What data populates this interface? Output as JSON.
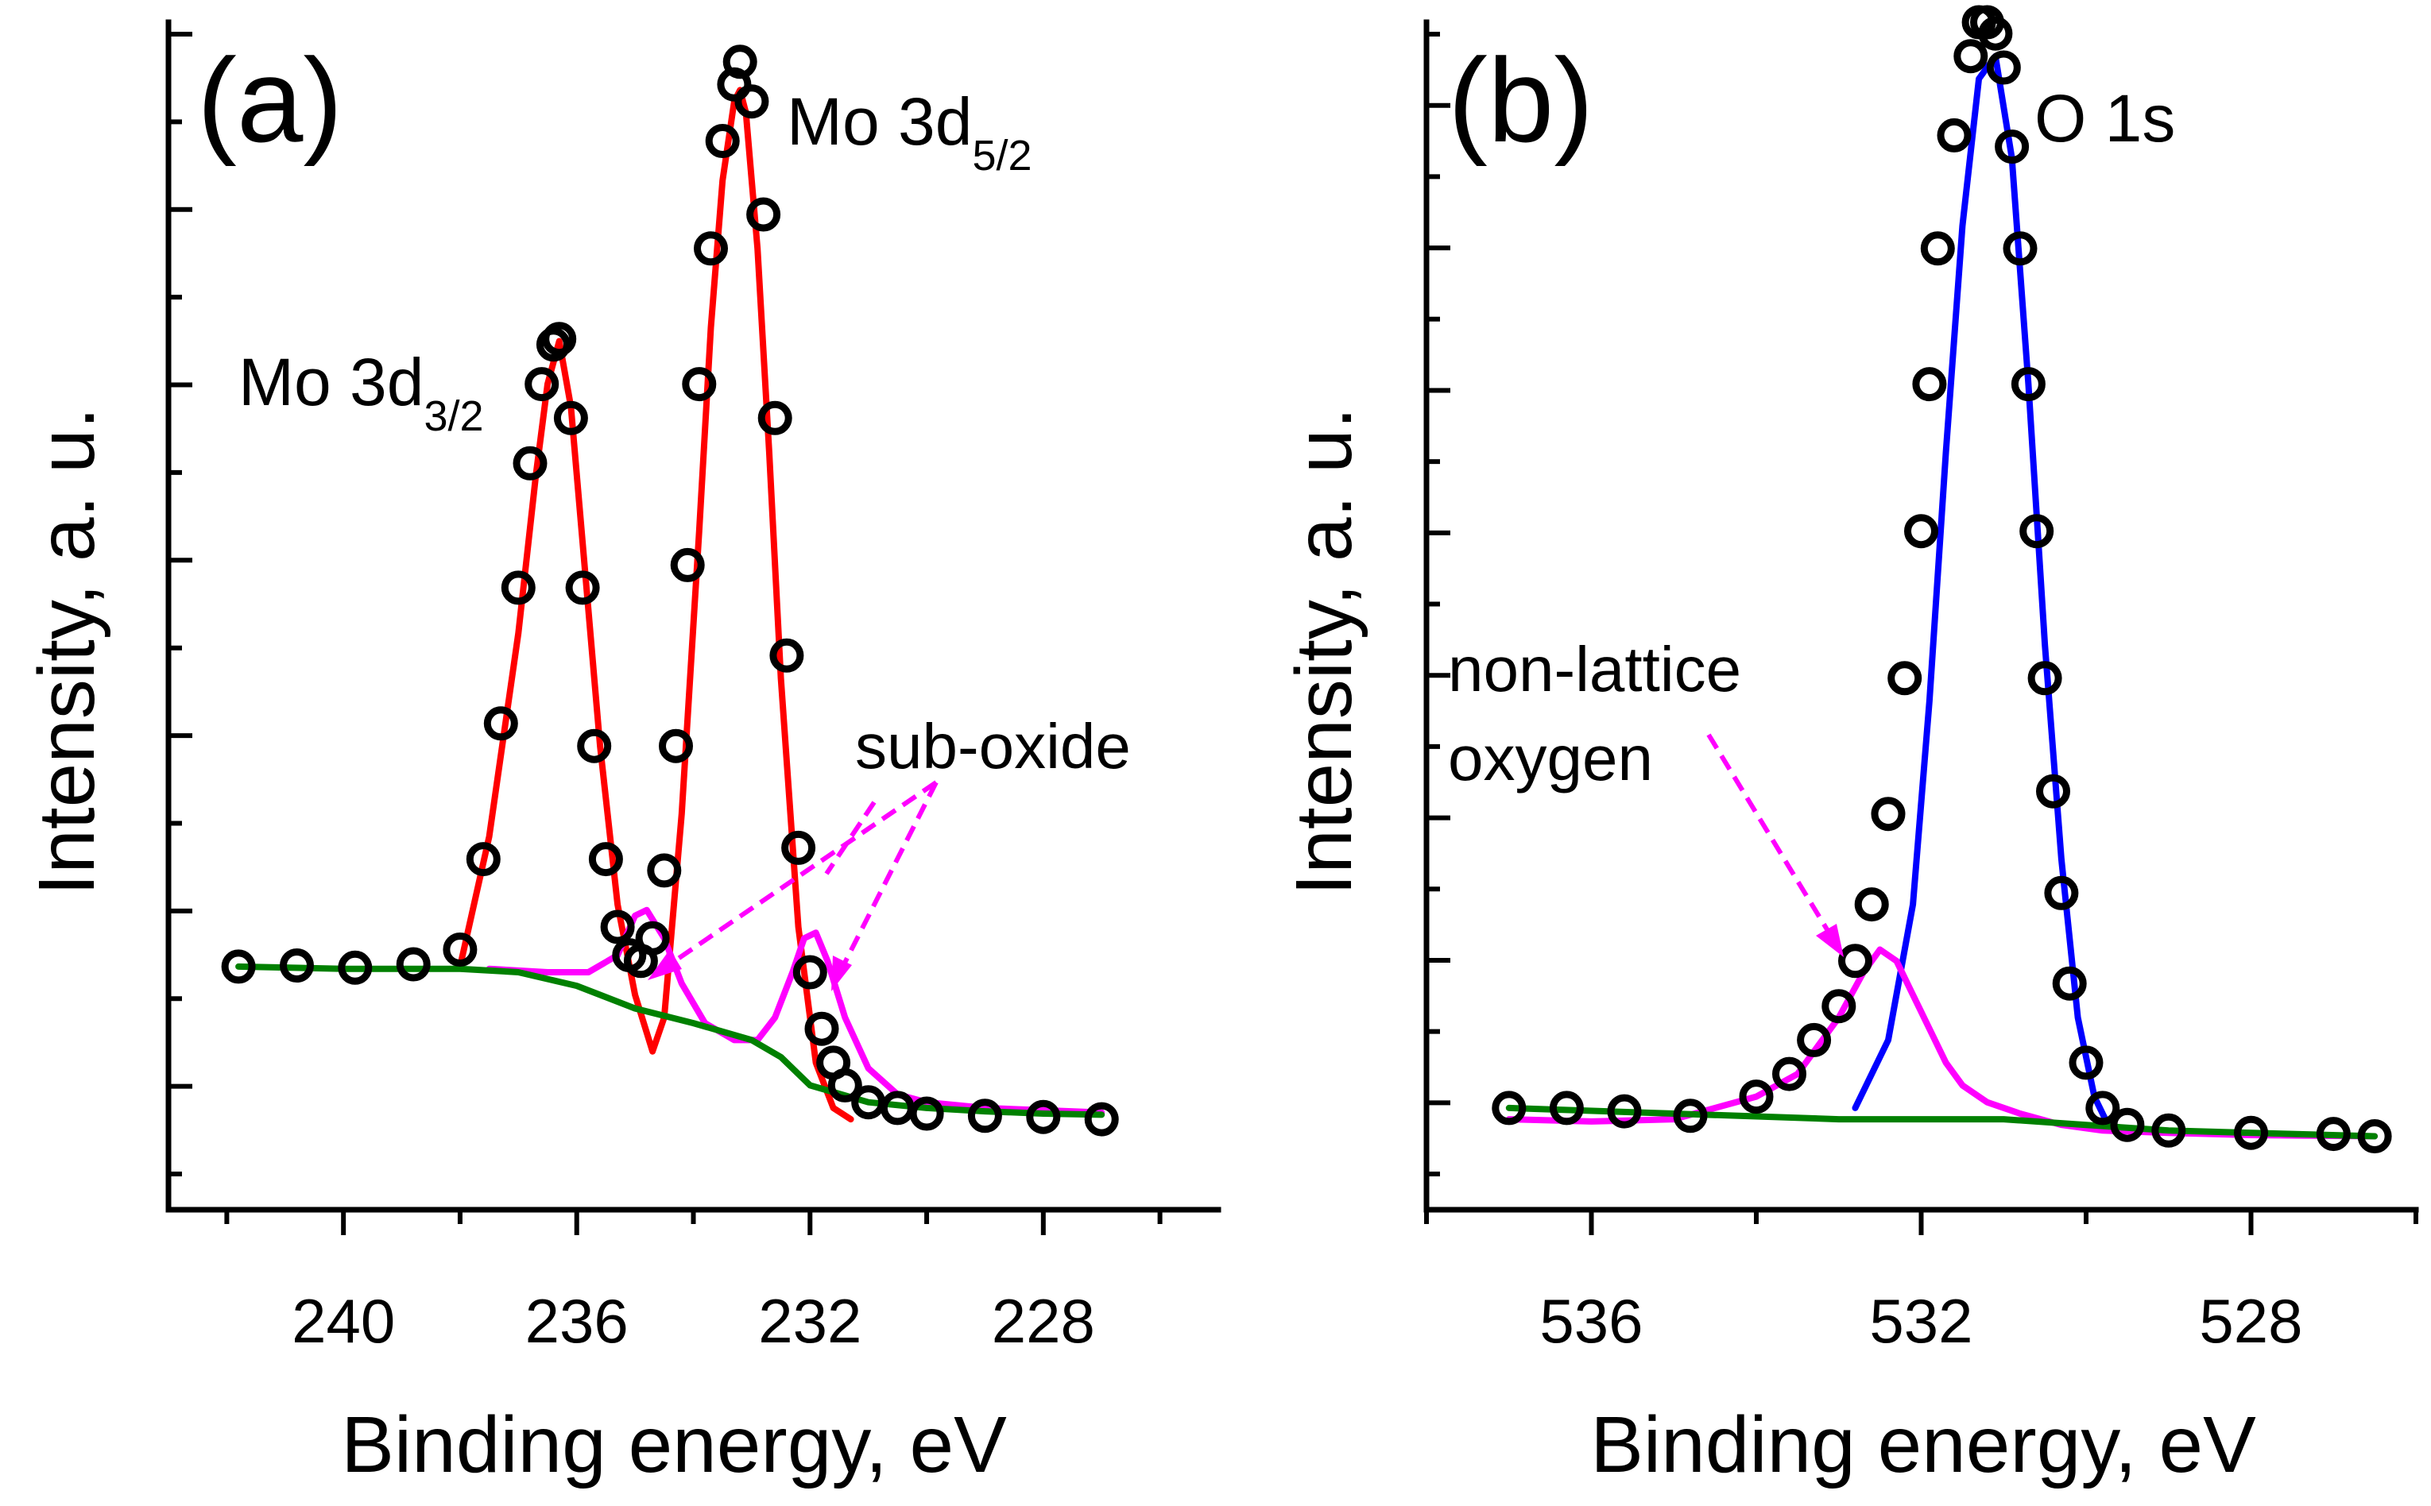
{
  "chart_data": [
    {
      "type": "scatter",
      "panel_label": "(a)",
      "title": "",
      "xlabel": "Binding energy, eV",
      "ylabel": "Intensity, a. u.",
      "xlim": [
        243,
        225
      ],
      "ylim": [
        -0.05,
        1.0
      ],
      "x_reversed": true,
      "y_tick_labels_shown": false,
      "xticks": [
        240,
        236,
        232,
        228
      ],
      "xtick_labels": [
        "240",
        "236",
        "232",
        "228"
      ],
      "peak_labels": [
        {
          "main": "Mo 3d",
          "sub": "3/2",
          "x": 236.3
        },
        {
          "main": "Mo 3d",
          "sub": "5/2",
          "x": 233.2
        }
      ],
      "annotation": {
        "text": "sub-oxide",
        "arrows_to_x": [
          234.7,
          231.8
        ]
      },
      "series": [
        {
          "name": "Measured data",
          "style": "open-circles",
          "color": "#000000",
          "x": [
            241.8,
            240.8,
            239.8,
            238.8,
            238.0,
            237.6,
            237.3,
            237.0,
            236.8,
            236.6,
            236.4,
            236.3,
            236.1,
            235.9,
            235.7,
            235.5,
            235.3,
            235.1,
            234.9,
            234.7,
            234.5,
            234.3,
            234.1,
            233.9,
            233.7,
            233.5,
            233.3,
            233.2,
            233.0,
            232.8,
            232.6,
            232.4,
            232.2,
            232.0,
            231.8,
            231.6,
            231.4,
            231.0,
            230.5,
            230.0,
            229.0,
            228.0,
            227.0
          ],
          "y": [
            0.165,
            0.166,
            0.164,
            0.167,
            0.18,
            0.26,
            0.38,
            0.5,
            0.61,
            0.68,
            0.715,
            0.72,
            0.65,
            0.5,
            0.36,
            0.26,
            0.2,
            0.175,
            0.17,
            0.19,
            0.25,
            0.36,
            0.52,
            0.68,
            0.8,
            0.895,
            0.945,
            0.965,
            0.93,
            0.83,
            0.65,
            0.44,
            0.27,
            0.16,
            0.11,
            0.08,
            0.06,
            0.045,
            0.04,
            0.035,
            0.033,
            0.032,
            0.03
          ]
        },
        {
          "name": "Mo 3d fit",
          "style": "line",
          "color": "#ff0000",
          "x": [
            238.0,
            237.5,
            237.0,
            236.7,
            236.5,
            236.3,
            236.1,
            235.9,
            235.6,
            235.3,
            235.0,
            234.7,
            234.5,
            234.2,
            233.9,
            233.7,
            233.5,
            233.3,
            233.2,
            233.1,
            232.9,
            232.7,
            232.5,
            232.2,
            231.9,
            231.6,
            231.3
          ],
          "y": [
            0.165,
            0.28,
            0.46,
            0.6,
            0.68,
            0.718,
            0.66,
            0.54,
            0.36,
            0.22,
            0.14,
            0.09,
            0.12,
            0.3,
            0.55,
            0.73,
            0.86,
            0.93,
            0.94,
            0.92,
            0.8,
            0.62,
            0.42,
            0.2,
            0.08,
            0.04,
            0.03
          ]
        },
        {
          "name": "Sub-oxide component",
          "style": "line",
          "color": "#ff00ff",
          "x": [
            237.5,
            236.5,
            235.8,
            235.3,
            235.0,
            234.8,
            234.5,
            234.2,
            233.8,
            233.3,
            232.9,
            232.6,
            232.3,
            232.1,
            231.9,
            231.7,
            231.4,
            231.0,
            230.5,
            230.0,
            229.0,
            228.0,
            227.0
          ],
          "y": [
            0.163,
            0.16,
            0.16,
            0.175,
            0.21,
            0.215,
            0.19,
            0.15,
            0.115,
            0.1,
            0.1,
            0.12,
            0.16,
            0.19,
            0.195,
            0.17,
            0.12,
            0.075,
            0.052,
            0.045,
            0.04,
            0.038,
            0.036
          ]
        },
        {
          "name": "Background",
          "style": "line",
          "color": "#008000",
          "x": [
            241.8,
            240.0,
            238.0,
            237.0,
            236.0,
            235.0,
            234.0,
            233.0,
            232.5,
            232.0,
            231.0,
            230.0,
            229.0,
            228.0,
            227.0
          ],
          "y": [
            0.165,
            0.163,
            0.163,
            0.16,
            0.148,
            0.128,
            0.115,
            0.1,
            0.085,
            0.06,
            0.045,
            0.04,
            0.037,
            0.035,
            0.034
          ]
        }
      ]
    },
    {
      "type": "scatter",
      "panel_label": "(b)",
      "title": "",
      "xlabel": "Binding energy, eV",
      "ylabel": "Intensity, a. u.",
      "xlim": [
        538.0,
        526.0
      ],
      "ylim": [
        -0.05,
        1.0
      ],
      "x_reversed": true,
      "y_tick_labels_shown": false,
      "xticks": [
        536,
        532,
        528
      ],
      "xtick_labels": [
        "536",
        "532",
        "528"
      ],
      "peak_labels": [
        {
          "main": "O 1s",
          "sub": "",
          "x": 531.2
        }
      ],
      "annotation": {
        "text_lines": [
          "non-lattice",
          "oxygen"
        ],
        "arrow_to_x": 532.9
      },
      "series": [
        {
          "name": "Measured data",
          "style": "open-circles",
          "color": "#000000",
          "x": [
            537.0,
            536.3,
            535.6,
            534.8,
            534.0,
            533.6,
            533.3,
            533.0,
            532.8,
            532.6,
            532.4,
            532.2,
            532.0,
            531.9,
            531.8,
            531.6,
            531.4,
            531.3,
            531.2,
            531.1,
            531.0,
            530.9,
            530.8,
            530.7,
            530.6,
            530.5,
            530.4,
            530.3,
            530.2,
            530.0,
            529.8,
            529.5,
            529.0,
            528.0,
            527.0,
            526.5
          ],
          "y": [
            0.04,
            0.04,
            0.037,
            0.033,
            0.05,
            0.07,
            0.1,
            0.13,
            0.17,
            0.22,
            0.3,
            0.42,
            0.55,
            0.68,
            0.8,
            0.9,
            0.97,
            1.0,
            1.0,
            0.99,
            0.96,
            0.89,
            0.8,
            0.68,
            0.55,
            0.42,
            0.32,
            0.23,
            0.15,
            0.08,
            0.04,
            0.025,
            0.02,
            0.018,
            0.017,
            0.015
          ]
        },
        {
          "name": "O 1s fit",
          "style": "line",
          "color": "#0000ff",
          "x": [
            532.8,
            532.4,
            532.1,
            531.9,
            531.7,
            531.5,
            531.3,
            531.1,
            530.9,
            530.7,
            530.5,
            530.3,
            530.1,
            529.9,
            529.7
          ],
          "y": [
            0.04,
            0.1,
            0.22,
            0.4,
            0.62,
            0.82,
            0.95,
            0.97,
            0.88,
            0.68,
            0.45,
            0.26,
            0.12,
            0.05,
            0.02
          ]
        },
        {
          "name": "Non-lattice oxygen component",
          "style": "line",
          "color": "#ff00ff",
          "x": [
            537.0,
            536.0,
            535.0,
            534.0,
            533.5,
            533.0,
            532.7,
            532.5,
            532.3,
            532.1,
            531.9,
            531.7,
            531.5,
            531.2,
            530.8,
            530.3,
            529.8,
            529.0,
            528.0,
            526.5
          ],
          "y": [
            0.03,
            0.028,
            0.03,
            0.05,
            0.07,
            0.12,
            0.16,
            0.18,
            0.17,
            0.14,
            0.11,
            0.08,
            0.06,
            0.045,
            0.035,
            0.025,
            0.02,
            0.018,
            0.016,
            0.015
          ]
        },
        {
          "name": "Background",
          "style": "line",
          "color": "#008000",
          "x": [
            537.0,
            535.0,
            533.0,
            531.0,
            530.0,
            529.0,
            527.5,
            526.5
          ],
          "y": [
            0.04,
            0.035,
            0.03,
            0.03,
            0.025,
            0.02,
            0.017,
            0.015
          ]
        }
      ]
    }
  ]
}
